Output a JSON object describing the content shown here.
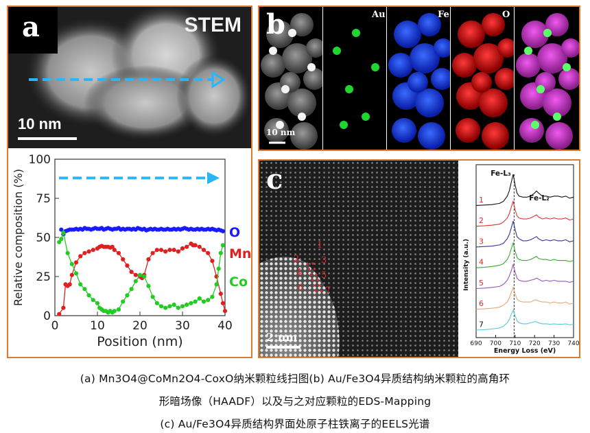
{
  "panel_a": {
    "letter": "a",
    "stem_label": "STEM",
    "scale_bar": "10 nm",
    "chart_data": {
      "type": "scatter",
      "xlabel": "Position (nm)",
      "ylabel": "Relative composition (%)",
      "xlim": [
        0,
        40
      ],
      "ylim": [
        0,
        100
      ],
      "xticks": [
        "0",
        "10",
        "20",
        "30",
        "40"
      ],
      "yticks": [
        "0",
        "25",
        "50",
        "75",
        "100"
      ],
      "series": [
        {
          "name": "O",
          "color": "#1a1aff",
          "x": [
            1.5,
            2,
            2.5,
            3,
            3.5,
            4,
            4.5,
            5,
            5.5,
            6,
            6.5,
            7,
            7.5,
            8,
            8.5,
            9,
            9.5,
            10,
            10.5,
            11,
            11.5,
            12,
            12.5,
            13,
            13.5,
            14,
            14.5,
            15,
            15.5,
            16,
            16.5,
            17,
            17.5,
            18,
            18.5,
            19,
            19.5,
            20,
            20.5,
            21,
            21.5,
            22,
            22.5,
            23,
            23.5,
            24,
            24.5,
            25,
            25.5,
            26,
            26.5,
            27,
            27.5,
            28,
            28.5,
            29,
            29.5,
            30,
            30.5,
            31,
            31.5,
            32,
            32.5,
            33,
            33.5,
            34,
            34.5,
            35,
            35.5,
            36,
            36.5,
            37,
            37.5,
            38,
            38.5,
            39,
            39.5
          ],
          "y": [
            55,
            52,
            54,
            54.5,
            55,
            55,
            55,
            55.5,
            55,
            55.5,
            55,
            56,
            55.5,
            55.5,
            55,
            55.5,
            56,
            55.5,
            55.5,
            56,
            55,
            55.5,
            56,
            55.5,
            55,
            55.5,
            55.5,
            56,
            55,
            55.5,
            55,
            55.5,
            55.5,
            55,
            55.5,
            55,
            56,
            55.5,
            55,
            55.5,
            54.5,
            55,
            55.5,
            55,
            55.5,
            55,
            55,
            55.5,
            55,
            55,
            55.5,
            55,
            55,
            55.5,
            55,
            55.5,
            55,
            55.5,
            56,
            55.5,
            55,
            55.5,
            55,
            55,
            55.5,
            55,
            55.5,
            55,
            55,
            55.5,
            55,
            55.5,
            55,
            54.5,
            55,
            54.5,
            54
          ]
        },
        {
          "name": "Mn",
          "color": "#e02020",
          "x": [
            1,
            2,
            2.5,
            3,
            3.5,
            4,
            5,
            6,
            7,
            8,
            9,
            10,
            10.5,
            11,
            11.5,
            12,
            12.5,
            13,
            13.5,
            14,
            15,
            16,
            17,
            18,
            19,
            20,
            20.5,
            21,
            22,
            23,
            24,
            25,
            26,
            27,
            28,
            29,
            30,
            31,
            32,
            32.5,
            33,
            34,
            35,
            36,
            37,
            38,
            39,
            39.5,
            40
          ],
          "y": [
            1,
            5,
            20,
            19,
            20,
            26,
            34,
            38,
            40,
            41,
            42,
            43,
            44,
            44.5,
            44,
            44,
            44,
            43.5,
            44,
            42,
            40,
            36,
            32,
            28,
            26,
            25,
            24,
            26,
            36,
            40,
            42,
            42,
            41,
            42,
            42,
            41,
            43,
            44,
            46,
            45,
            45,
            44,
            42,
            40,
            35,
            25,
            14,
            8,
            3
          ]
        },
        {
          "name": "Co",
          "color": "#22cc22",
          "x": [
            1,
            1.5,
            2,
            3,
            4,
            5,
            6,
            7,
            8,
            9,
            10,
            10.5,
            11,
            11.5,
            12,
            12.5,
            13,
            13.5,
            14,
            15,
            16,
            17,
            18,
            19,
            20,
            21,
            22,
            23,
            24,
            25,
            26,
            27,
            28,
            29,
            30,
            31,
            32,
            33,
            34,
            35,
            36,
            37,
            38,
            38.5,
            39,
            39.5
          ],
          "y": [
            47,
            49,
            53,
            40,
            33,
            27,
            20,
            17,
            13,
            10,
            8,
            5,
            4,
            3,
            3,
            2,
            3,
            2,
            3,
            4,
            9,
            13,
            17,
            22,
            26,
            25,
            19,
            12,
            8,
            6,
            5,
            6,
            7,
            5,
            6,
            7,
            8,
            9,
            11,
            9,
            10,
            12,
            20,
            30,
            40,
            45
          ]
        }
      ]
    }
  },
  "panel_b": {
    "letter": "b",
    "scale_bar": "10 nm",
    "channels": [
      "Au",
      "Fe",
      "O"
    ]
  },
  "panel_c": {
    "letter": "c",
    "scale_bar": "2 nm",
    "column_labels": [
      "1",
      "2",
      "3",
      "4",
      "5",
      "6",
      "7"
    ],
    "chart_data": {
      "type": "line",
      "xlabel": "Energy Loss (eV)",
      "ylabel": "Intensity (a.u.)",
      "xlim": [
        690,
        740
      ],
      "xticks": [
        "690",
        "700",
        "710",
        "720",
        "730",
        "740"
      ],
      "peak_labels": [
        {
          "text": "Fe-L₃",
          "x": 709
        },
        {
          "text": "Fe-L₂",
          "x": 721
        }
      ],
      "reference_line_x": 709.5,
      "x": [
        690,
        694,
        698,
        702,
        704,
        706,
        707,
        708,
        709,
        710,
        711,
        712,
        714,
        716,
        718,
        720,
        721,
        722,
        724,
        726,
        728,
        730,
        732,
        734,
        736,
        738,
        740
      ],
      "series": [
        {
          "name": "1",
          "color": "#111111",
          "offset": 6,
          "y": [
            0.1,
            0.12,
            0.14,
            0.2,
            0.3,
            0.55,
            0.8,
            1.2,
            1.6,
            1.1,
            0.7,
            0.55,
            0.5,
            0.5,
            0.55,
            0.7,
            0.8,
            0.7,
            0.55,
            0.55,
            0.5,
            0.55,
            0.55,
            0.5,
            0.55,
            0.45,
            0.5
          ]
        },
        {
          "name": "2",
          "color": "#e03030",
          "offset": 5,
          "y": [
            0.1,
            0.12,
            0.15,
            0.2,
            0.3,
            0.5,
            0.7,
            1.0,
            1.3,
            0.9,
            0.6,
            0.5,
            0.45,
            0.45,
            0.5,
            0.6,
            0.65,
            0.55,
            0.45,
            0.5,
            0.45,
            0.5,
            0.45,
            0.45,
            0.5,
            0.4,
            0.45
          ]
        },
        {
          "name": "3",
          "color": "#333399",
          "offset": 4,
          "y": [
            0.1,
            0.12,
            0.14,
            0.2,
            0.28,
            0.5,
            0.7,
            1.0,
            1.35,
            0.95,
            0.6,
            0.5,
            0.4,
            0.4,
            0.45,
            0.55,
            0.6,
            0.5,
            0.4,
            0.45,
            0.4,
            0.45,
            0.4,
            0.4,
            0.45,
            0.35,
            0.4
          ]
        },
        {
          "name": "4",
          "color": "#33aa33",
          "offset": 3,
          "y": [
            0.1,
            0.12,
            0.16,
            0.22,
            0.3,
            0.5,
            0.7,
            1.0,
            1.3,
            0.9,
            0.6,
            0.5,
            0.45,
            0.45,
            0.5,
            0.6,
            0.65,
            0.55,
            0.5,
            0.5,
            0.45,
            0.5,
            0.45,
            0.45,
            0.45,
            0.4,
            0.45
          ]
        },
        {
          "name": "5",
          "color": "#9955bb",
          "offset": 2,
          "y": [
            0.1,
            0.12,
            0.15,
            0.2,
            0.3,
            0.5,
            0.7,
            0.95,
            1.25,
            0.9,
            0.6,
            0.5,
            0.45,
            0.45,
            0.5,
            0.55,
            0.6,
            0.55,
            0.45,
            0.5,
            0.45,
            0.5,
            0.45,
            0.45,
            0.45,
            0.4,
            0.45
          ]
        },
        {
          "name": "6",
          "color": "#e8a878",
          "offset": 1,
          "y": [
            0.1,
            0.12,
            0.15,
            0.2,
            0.3,
            0.45,
            0.65,
            0.9,
            1.15,
            0.85,
            0.6,
            0.5,
            0.45,
            0.45,
            0.45,
            0.55,
            0.55,
            0.5,
            0.45,
            0.45,
            0.4,
            0.45,
            0.4,
            0.4,
            0.45,
            0.35,
            0.4
          ]
        },
        {
          "name": "7",
          "color": "#55c8d8",
          "offset": 0,
          "y": [
            0.1,
            0.12,
            0.15,
            0.2,
            0.28,
            0.45,
            0.6,
            0.85,
            1.05,
            0.8,
            0.55,
            0.45,
            0.4,
            0.4,
            0.45,
            0.5,
            0.5,
            0.45,
            0.4,
            0.4,
            0.38,
            0.4,
            0.38,
            0.38,
            0.4,
            0.35,
            0.38
          ]
        }
      ]
    }
  },
  "caption": {
    "line1": "(a) Mn3O4@CoMn2O4-CoxO纳米颗粒线扫图(b) Au/Fe3O4异质结构纳米颗粒的高角环",
    "line2": "形暗场像（HAADF）以及与之对应颗粒的EDS-Mapping",
    "line3": "(c) Au/Fe3O4异质结构界面处原子柱铁离子的EELS光谱"
  },
  "colors": {
    "frame": "#e07a2e",
    "arrow": "#29b6f6"
  }
}
